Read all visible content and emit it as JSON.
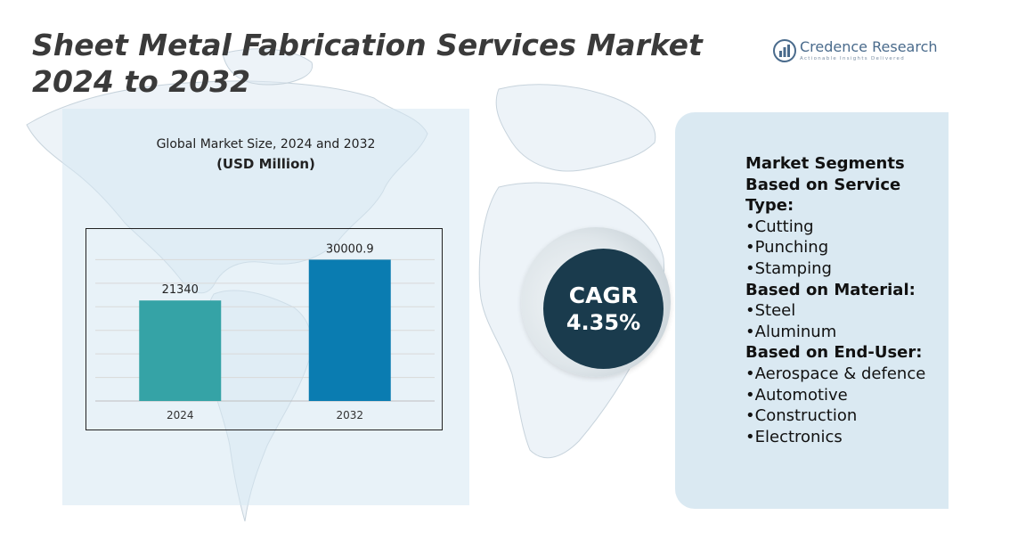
{
  "title": "Sheet Metal Fabrication Services Market 2024 to 2032",
  "logo": {
    "name": "Credence Research",
    "tagline": "Actionable Insights Delivered",
    "icon": "bar-chart-logo-icon"
  },
  "chart_data": {
    "type": "bar",
    "title": "Global Market Size, 2024 and 2032",
    "subtitle": "(USD Million)",
    "categories": [
      "2024",
      "2032"
    ],
    "values": [
      21340,
      30000.9
    ],
    "value_labels": [
      "21340",
      "30000.9"
    ],
    "colors": [
      "#35a3a6",
      "#0a7cb1"
    ],
    "ylim": [
      0,
      35000
    ],
    "grid": true,
    "xlabel": "",
    "ylabel": ""
  },
  "cagr": {
    "label": "CAGR",
    "value": "4.35%"
  },
  "segments": {
    "title": "Market Segments",
    "groups": [
      {
        "heading": "Based on Service Type:",
        "items": [
          "Cutting",
          "Punching",
          "Stamping"
        ]
      },
      {
        "heading": "Based on Material:",
        "items": [
          "Steel",
          "Aluminum"
        ]
      },
      {
        "heading": "Based on End-User:",
        "items": [
          "Aerospace & defence",
          "Automotive",
          "Construction",
          "Electronics"
        ]
      }
    ]
  },
  "colors": {
    "title_text": "#3a3a3a",
    "cagr_fill": "#1a3b4d",
    "panel_bg": "#d6e8f2"
  }
}
